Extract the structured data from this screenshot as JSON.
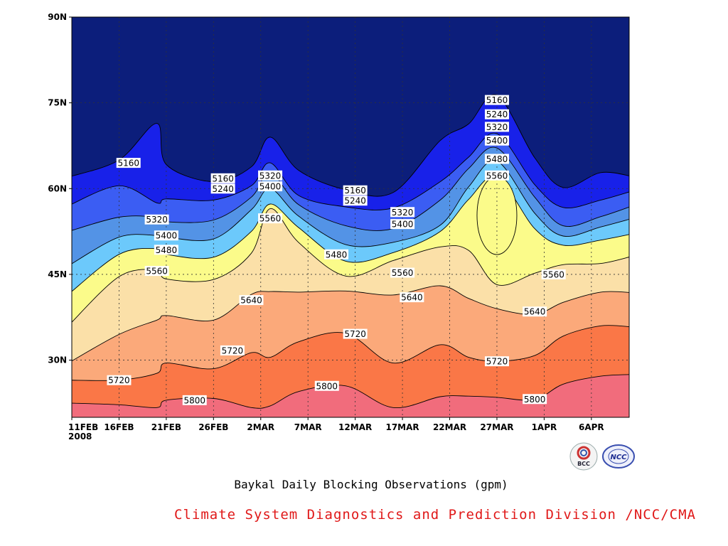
{
  "chart_data": {
    "type": "heatmap",
    "subtype": "filled-contour (time-latitude)",
    "title": "Baykal Daily Blocking Observations (gpm)",
    "subtitle": "Climate System Diagnostics and Prediction Division /NCC/CMA",
    "xlabel": "",
    "ylabel": "",
    "x_ticks": [
      "11FEB\n2008",
      "16FEB",
      "21FEB",
      "26FEB",
      "2MAR",
      "7MAR",
      "12MAR",
      "17MAR",
      "22MAR",
      "27MAR",
      "1APR",
      "6APR"
    ],
    "x_range": [
      "2008-02-11",
      "2008-04-10"
    ],
    "y_ticks": [
      "30N",
      "45N",
      "60N",
      "75N",
      "90N"
    ],
    "y_range": [
      20,
      90
    ],
    "grid": true,
    "contour_levels": [
      5160,
      5240,
      5320,
      5400,
      5480,
      5560,
      5640,
      5720,
      5800
    ],
    "contour_labels": [
      "5160",
      "5240",
      "5320",
      "5400",
      "5480",
      "5560",
      "5640",
      "5720",
      "5800"
    ],
    "colors": [
      "#f16c7c",
      "#fa7747",
      "#fba97a",
      "#fbe0a8",
      "#fbfb8a",
      "#6cc9fb",
      "#5393e6",
      "#3b5df3",
      "#1821e9",
      "#0c1e7b"
    ],
    "dates": [
      "2008-02-11",
      "2008-02-16",
      "2008-02-20",
      "2008-02-21",
      "2008-02-26",
      "2008-03-01",
      "2008-03-03",
      "2008-03-06",
      "2008-03-11",
      "2008-03-16",
      "2008-03-21",
      "2008-03-24",
      "2008-03-27",
      "2008-03-31",
      "2008-04-03",
      "2008-04-07",
      "2008-04-10"
    ],
    "contour_latitudes": {
      "5800": [
        22.5,
        22.2,
        21.7,
        23.0,
        23.3,
        21.7,
        22.0,
        24.5,
        25.5,
        21.7,
        23.6,
        23.7,
        23.5,
        23.1,
        25.8,
        27.2,
        27.5
      ],
      "5720": [
        26.5,
        26.5,
        27.7,
        29.5,
        28.5,
        31.3,
        30.5,
        33.2,
        34.7,
        29.5,
        32.7,
        30.5,
        29.8,
        30.8,
        34.2,
        36.0,
        35.8
      ],
      "5640": [
        29.5,
        34.5,
        37.0,
        37.8,
        37.0,
        41.5,
        42.0,
        41.9,
        42.1,
        41.4,
        43.0,
        40.8,
        39.0,
        38.0,
        40.1,
        41.9,
        41.8
      ],
      "5560": [
        36.0,
        44.6,
        45.8,
        44.2,
        44.1,
        48.7,
        56.5,
        50.6,
        44.7,
        47.4,
        49.8,
        49.2,
        43.2,
        45.2,
        46.7,
        46.9,
        48.2
      ],
      "5480": [
        41.5,
        48.5,
        49.5,
        48.5,
        48.0,
        52.5,
        57.3,
        53.2,
        47.3,
        48.8,
        52.5,
        58.1,
        62.0,
        53.0,
        50.1,
        51.0,
        52.1
      ],
      "5400": [
        46.5,
        51.5,
        51.8,
        51.5,
        51.2,
        56.3,
        60.0,
        55.2,
        50.2,
        50.6,
        53.6,
        60.3,
        64.8,
        55.7,
        51.7,
        53.3,
        54.8
      ],
      "5320": [
        52.5,
        55.0,
        55.0,
        54.2,
        54.5,
        58.5,
        62.8,
        57.2,
        53.5,
        53.0,
        58.0,
        63.5,
        67.1,
        58.5,
        53.5,
        55.1,
        57.0
      ],
      "5240": [
        57.0,
        60.5,
        57.5,
        58.2,
        58.0,
        60.5,
        64.5,
        58.8,
        56.8,
        56.6,
        61.2,
        65.5,
        69.6,
        60.7,
        56.7,
        58.0,
        59.6
      ],
      "5160": [
        62.0,
        65.0,
        71.4,
        64.2,
        61.2,
        63.8,
        69.0,
        63.2,
        59.8,
        59.3,
        68.4,
        71.3,
        76.3,
        65.4,
        60.2,
        62.8,
        62.1
      ]
    },
    "labels_on_contours": [
      {
        "text": "5160",
        "date": "2008-02-17",
        "lat": 64.5
      },
      {
        "text": "5160",
        "date": "2008-02-27",
        "lat": 61.8
      },
      {
        "text": "5240",
        "date": "2008-02-27",
        "lat": 60.0
      },
      {
        "text": "5320",
        "date": "2008-03-03",
        "lat": 62.3
      },
      {
        "text": "5400",
        "date": "2008-03-03",
        "lat": 60.4
      },
      {
        "text": "5320",
        "date": "2008-02-20",
        "lat": 54.6
      },
      {
        "text": "5400",
        "date": "2008-02-21",
        "lat": 51.8
      },
      {
        "text": "5480",
        "date": "2008-02-21",
        "lat": 49.3
      },
      {
        "text": "5560",
        "date": "2008-02-20",
        "lat": 45.6
      },
      {
        "text": "5560",
        "date": "2008-03-03",
        "lat": 54.8
      },
      {
        "text": "5640",
        "date": "2008-03-01",
        "lat": 40.5
      },
      {
        "text": "5720",
        "date": "2008-02-28",
        "lat": 31.7
      },
      {
        "text": "5720",
        "date": "2008-02-16",
        "lat": 26.5
      },
      {
        "text": "5800",
        "date": "2008-02-24",
        "lat": 23.0
      },
      {
        "text": "5160",
        "date": "2008-03-12",
        "lat": 59.7
      },
      {
        "text": "5240",
        "date": "2008-03-12",
        "lat": 57.9
      },
      {
        "text": "5320",
        "date": "2008-03-17",
        "lat": 55.9
      },
      {
        "text": "5400",
        "date": "2008-03-17",
        "lat": 53.8
      },
      {
        "text": "5480",
        "date": "2008-03-10",
        "lat": 48.5
      },
      {
        "text": "5560",
        "date": "2008-03-17",
        "lat": 45.3
      },
      {
        "text": "5640",
        "date": "2008-03-18",
        "lat": 41.0
      },
      {
        "text": "5720",
        "date": "2008-03-12",
        "lat": 34.6
      },
      {
        "text": "5800",
        "date": "2008-03-09",
        "lat": 25.5
      },
      {
        "text": "5160",
        "date": "2008-03-27",
        "lat": 75.5
      },
      {
        "text": "5240",
        "date": "2008-03-27",
        "lat": 73.0
      },
      {
        "text": "5320",
        "date": "2008-03-27",
        "lat": 70.8
      },
      {
        "text": "5400",
        "date": "2008-03-27",
        "lat": 68.4
      },
      {
        "text": "5480",
        "date": "2008-03-27",
        "lat": 65.2
      },
      {
        "text": "5560",
        "date": "2008-03-27",
        "lat": 62.3
      },
      {
        "text": "5560",
        "date": "2008-04-02",
        "lat": 45.0
      },
      {
        "text": "5640",
        "date": "2008-03-31",
        "lat": 38.5
      },
      {
        "text": "5720",
        "date": "2008-03-27",
        "lat": 29.8
      },
      {
        "text": "5800",
        "date": "2008-03-31",
        "lat": 23.2
      }
    ]
  },
  "logos": [
    "bcc-logo",
    "ncc-logo"
  ],
  "logo_text": {
    "bcc": "BCC",
    "ncc": "NCC"
  }
}
